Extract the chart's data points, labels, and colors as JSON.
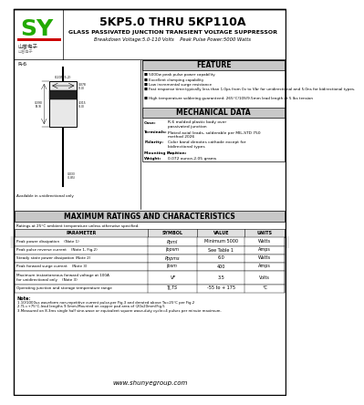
{
  "title": "5KP5.0 THRU 5KP110A",
  "subtitle": "GLASS PASSIVATED JUNCTION TRANSIENT VOLTAGE SUPPRESSOR",
  "breakdown": "Breakdown Voltage:5.0-110 Volts    Peak Pulse Power:5000 Watts",
  "feature_title": "FEATURE",
  "features": [
    "5000w peak pulse power capability",
    "Excellent clamping capability",
    "Low incremental surge resistance",
    "Fast response time:typically less than 1.0ps from 0v to Vbr for unidirectional and 5.0ns for bidirectional types.",
    "High temperature soldering guaranteed: 265°C/10S/9.5mm lead length at 5 lbs tension"
  ],
  "mech_title": "MECHANICAL DATA",
  "mech_data": [
    [
      "Case:",
      "R-6 molded plastic body over\npassivated junction"
    ],
    [
      "Terminals:",
      "Plated axial leads, solderable per MIL-STD 750\nmethod 2026"
    ],
    [
      "Polarity:",
      "Color band denotes cathode except for\nbidirectional types"
    ],
    [
      "Mounting Position:",
      "Any"
    ],
    [
      "Weight:",
      "0.072 ounce,2.05 grams"
    ]
  ],
  "table_title": "MAXIMUM RATINGS AND CHARACTERISTICS",
  "table_subtitle": "Ratings at 25°C ambient temperature unless otherwise specified.",
  "table_header": [
    "PARAMETER",
    "SYMBOL",
    "VALUE",
    "UNITS"
  ],
  "table_rows": [
    [
      "Peak power dissipation    (Note 1)",
      "Ppml",
      "Minimum 5000",
      "Watts"
    ],
    [
      "Peak pulse reverse current    (Note 1, Fig.2)",
      "Ippsm",
      "See Table 1",
      "Amps"
    ],
    [
      "Steady state power dissipation (Note 2)",
      "Pppms",
      "6.0",
      "Watts"
    ],
    [
      "Peak forward surge current    (Note 3)",
      "Ipsm",
      "400",
      "Amps"
    ],
    [
      "Maximum instantaneous forward voltage at 100A\nfor unidirectional only    (Note 3)",
      "VF",
      "3.5",
      "Volts"
    ],
    [
      "Operating junction and storage temperature range",
      "TJ,TS",
      "-55 to + 175",
      "°C"
    ]
  ],
  "notes_title": "Note:",
  "notes": [
    "1.10/1000us waveform non-repetitive current pulse,per Fig.3 and derated above Ta=25°C per Fig.2",
    "2.TL=+75°C,lead lengths 9.5mm,Mounted on copper pad area of (20x20mm)Fig.5",
    "3.Measured on 8.3ms single half sine-wave or equivalent square wave,duty cycle=4 pulses per minute maximum."
  ],
  "notes_combined": "1.10/1000us waveform non-repetitive current pulse,per Fig.3 and derated above Ta=25°C per Fig.2\n2.TL=+75°C,lead lengths 9.5mm,Mounted on copper pad area of (20x20mm)Fig.5\n3.Measured on 8.3ms single half sine-wave or equivalent square wave,duty cycle=4 pulses per minute maximum.",
  "website": "www.shunyegroup.com",
  "logo_green": "#22aa00",
  "logo_red": "#cc0000",
  "bg_color": "#ffffff",
  "section_header_bg": "#c8c8c8",
  "table_row_bg": "#ffffff",
  "watermark_color": "#d8d8d8",
  "border_color": "#000000"
}
